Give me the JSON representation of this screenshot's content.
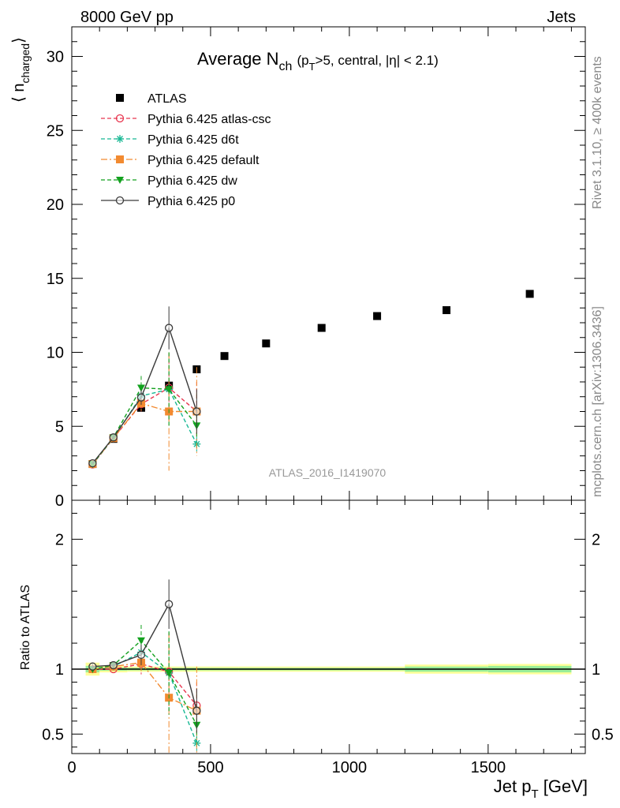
{
  "header": {
    "left": "8000 GeV pp",
    "right": "Jets"
  },
  "title": {
    "main": "Average N",
    "sub": "ch",
    "cond_a": "(p",
    "cond_sub": "T",
    "cond_b": ">5, central, |η| < 2.1)"
  },
  "ylabel": {
    "main": "⟨ n",
    "sub": "charged",
    "close": "⟩"
  },
  "ratio_ylabel": "Ratio to ATLAS",
  "xlabel": {
    "main": "Jet p",
    "sub": "T",
    "unit": " [GeV]"
  },
  "side_labels": {
    "rivet": "Rivet 3.1.10, ≥ 400k events",
    "mcplots": "mcplots.cern.ch [arXiv:1306.3436]"
  },
  "watermark": "ATLAS_2016_I1419070",
  "chart_data": [
    {
      "type": "scatter",
      "panel": "main",
      "xlim": [
        0,
        1850
      ],
      "ylim": [
        0,
        32
      ],
      "yticks": [
        0,
        5,
        10,
        15,
        20,
        25,
        30
      ],
      "ytick_labels": [
        "0",
        "5",
        "10",
        "15",
        "20",
        "25",
        "30"
      ],
      "legend_position": "top-left",
      "series": [
        {
          "name": "ATLAS",
          "color": "#000000",
          "marker": "square",
          "line": "none",
          "x": [
            75,
            150,
            250,
            350,
            450,
            550,
            700,
            900,
            1100,
            1350,
            1650
          ],
          "y": [
            2.45,
            4.15,
            6.25,
            7.75,
            8.85,
            9.75,
            10.6,
            11.65,
            12.45,
            12.85,
            13.95
          ],
          "err": [
            0.05,
            0.05,
            0.05,
            0.05,
            0.05,
            0.05,
            0.05,
            0.05,
            0.05,
            0.05,
            0.05
          ]
        },
        {
          "name": "Pythia 6.425 atlas-csc",
          "color": "#e8364f",
          "marker": "open-circle",
          "line": "dashed",
          "x": [
            75,
            150,
            250,
            350,
            450
          ],
          "y": [
            2.42,
            4.2,
            6.5,
            7.6,
            6.0
          ],
          "err": [
            0.05,
            0.1,
            0.5,
            2.3,
            2.0
          ]
        },
        {
          "name": "Pythia 6.425 d6t",
          "color": "#18b894",
          "marker": "asterisk",
          "line": "dashed",
          "x": [
            75,
            150,
            250,
            350,
            450
          ],
          "y": [
            2.45,
            4.2,
            7.05,
            7.5,
            3.8
          ],
          "err": [
            0.05,
            0.1,
            0.4,
            2.5,
            0.5
          ]
        },
        {
          "name": "Pythia 6.425 default",
          "color": "#f28a30",
          "marker": "square",
          "line": "dashdot",
          "x": [
            75,
            150,
            250,
            350,
            450
          ],
          "y": [
            2.45,
            4.2,
            6.55,
            6.0,
            6.0
          ],
          "err": [
            0.05,
            0.1,
            0.5,
            4.0,
            3.0
          ]
        },
        {
          "name": "Pythia 6.425 dw",
          "color": "#13a11f",
          "marker": "triangle-down",
          "line": "dashed",
          "x": [
            75,
            150,
            250,
            350,
            450
          ],
          "y": [
            2.45,
            4.25,
            7.6,
            7.5,
            5.05
          ],
          "err": [
            0.05,
            0.1,
            0.8,
            2.5,
            0.8
          ]
        },
        {
          "name": "Pythia 6.425 p0",
          "color": "#3a3a3a",
          "marker": "open-circle",
          "line": "solid",
          "x": [
            75,
            150,
            250,
            350,
            450
          ],
          "y": [
            2.5,
            4.25,
            6.95,
            11.65,
            6.0
          ],
          "err": [
            0.05,
            0.1,
            0.5,
            1.45,
            1.5
          ]
        }
      ]
    },
    {
      "type": "scatter",
      "panel": "ratio",
      "xlim": [
        0,
        1850
      ],
      "ylim": [
        0.35,
        2.3
      ],
      "yticks": [
        0.5,
        1,
        2
      ],
      "ytick_labels": [
        "0.5",
        "1",
        "2"
      ],
      "xticks": [
        0,
        500,
        1000,
        1500
      ],
      "xtick_labels": [
        "0",
        "500",
        "1000",
        "1500"
      ],
      "bands": {
        "edges": [
          50,
          100,
          200,
          300,
          400,
          500,
          600,
          800,
          1000,
          1200,
          1500,
          1800
        ],
        "green_half": [
          0.025,
          0.012,
          0.01,
          0.01,
          0.01,
          0.01,
          0.01,
          0.01,
          0.01,
          0.02,
          0.025
        ],
        "yellow_half": [
          0.05,
          0.025,
          0.02,
          0.02,
          0.02,
          0.02,
          0.02,
          0.02,
          0.02,
          0.035,
          0.04
        ]
      },
      "series": [
        {
          "name": "Pythia 6.425 atlas-csc",
          "x": [
            75,
            150,
            250,
            350,
            450
          ],
          "y": [
            1.0,
            1.0,
            1.04,
            0.98,
            0.72
          ],
          "err": [
            0.02,
            0.02,
            0.08,
            0.3,
            0.18
          ]
        },
        {
          "name": "Pythia 6.425 d6t",
          "x": [
            75,
            150,
            250,
            350,
            450
          ],
          "y": [
            1.0,
            1.02,
            1.13,
            0.97,
            0.43
          ],
          "err": [
            0.02,
            0.02,
            0.07,
            0.32,
            0.06
          ]
        },
        {
          "name": "Pythia 6.425 default",
          "x": [
            75,
            150,
            250,
            350,
            450
          ],
          "y": [
            1.0,
            1.02,
            1.05,
            0.78,
            0.68
          ],
          "err": [
            0.02,
            0.02,
            0.08,
            0.5,
            0.34
          ]
        },
        {
          "name": "Pythia 6.425 dw",
          "x": [
            75,
            150,
            250,
            350,
            450
          ],
          "y": [
            1.0,
            1.03,
            1.22,
            0.97,
            0.57
          ],
          "err": [
            0.02,
            0.02,
            0.12,
            0.32,
            0.1
          ]
        },
        {
          "name": "Pythia 6.425 p0",
          "x": [
            75,
            150,
            250,
            350,
            450
          ],
          "y": [
            1.02,
            1.03,
            1.11,
            1.5,
            0.68
          ],
          "err": [
            0.02,
            0.02,
            0.08,
            0.19,
            0.17
          ]
        }
      ]
    }
  ]
}
